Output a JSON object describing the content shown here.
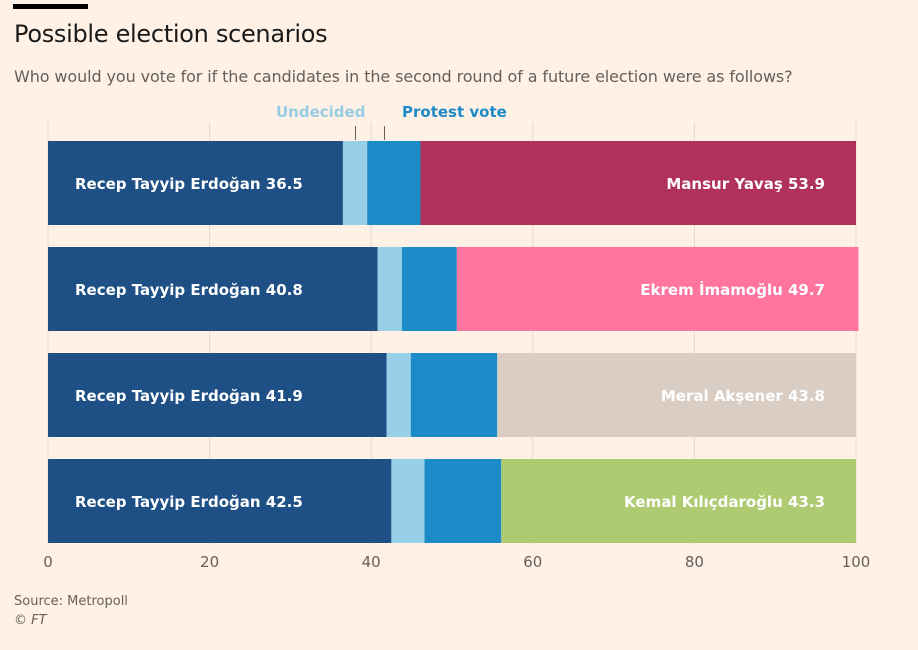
{
  "header": {
    "title": "Possible election scenarios",
    "subtitle": "Who would you vote for if the candidates in the second round of a future election were as follows?"
  },
  "legend": {
    "undecided": "Undecided",
    "protest": "Protest vote"
  },
  "footer": {
    "source": "Source: Metropoll",
    "copyright": "© FT"
  },
  "colors": {
    "background": "#fff1e5",
    "erdogan": "#1f5085",
    "undecided": "#96cfe6",
    "protest": "#1e8bc9",
    "yavas": "#b0315b",
    "imamoglu": "#ff75a0",
    "aksener": "#d9cdc4",
    "kilicdaroglu": "#aecb71",
    "gridline": "#e6d9ce",
    "axis_text": "#66605c"
  },
  "chart_data": {
    "type": "bar",
    "orientation": "horizontal",
    "stacked": true,
    "title": "Possible election scenarios",
    "subtitle": "Who would you vote for if the candidates in the second round of a future election were as follows?",
    "xlabel": "",
    "ylabel": "",
    "xlim": [
      0,
      100
    ],
    "xticks": [
      0,
      20,
      40,
      60,
      80,
      100
    ],
    "grid": true,
    "legend_placement": "top",
    "segments": [
      "Erdoğan",
      "Undecided",
      "Protest vote",
      "Challenger"
    ],
    "rows": [
      {
        "left_label": "Recep Tayyip Erdoğan 36.5",
        "right_label": "Mansur Yavaş 53.9",
        "erdogan": 36.5,
        "undecided": 3.0,
        "protest": 6.6,
        "challenger": 53.9,
        "challenger_color": "#b0315b"
      },
      {
        "left_label": "Recep Tayyip Erdoğan 40.8",
        "right_label": "Ekrem İmamoğlu 49.7",
        "erdogan": 40.8,
        "undecided": 3.0,
        "protest": 6.8,
        "challenger": 49.7,
        "challenger_color": "#ff75a0"
      },
      {
        "left_label": "Recep Tayyip Erdoğan 41.9",
        "right_label": "Meral Akşener 43.8",
        "erdogan": 41.9,
        "undecided": 3.0,
        "protest": 10.7,
        "challenger": 43.8,
        "challenger_color": "#d9cdc4"
      },
      {
        "left_label": "Recep Tayyip Erdoğan 42.5",
        "right_label": "Kemal Kılıçdaroğlu 43.3",
        "erdogan": 42.5,
        "undecided": 4.1,
        "protest": 9.5,
        "challenger": 43.3,
        "challenger_color": "#aecb71"
      }
    ]
  }
}
